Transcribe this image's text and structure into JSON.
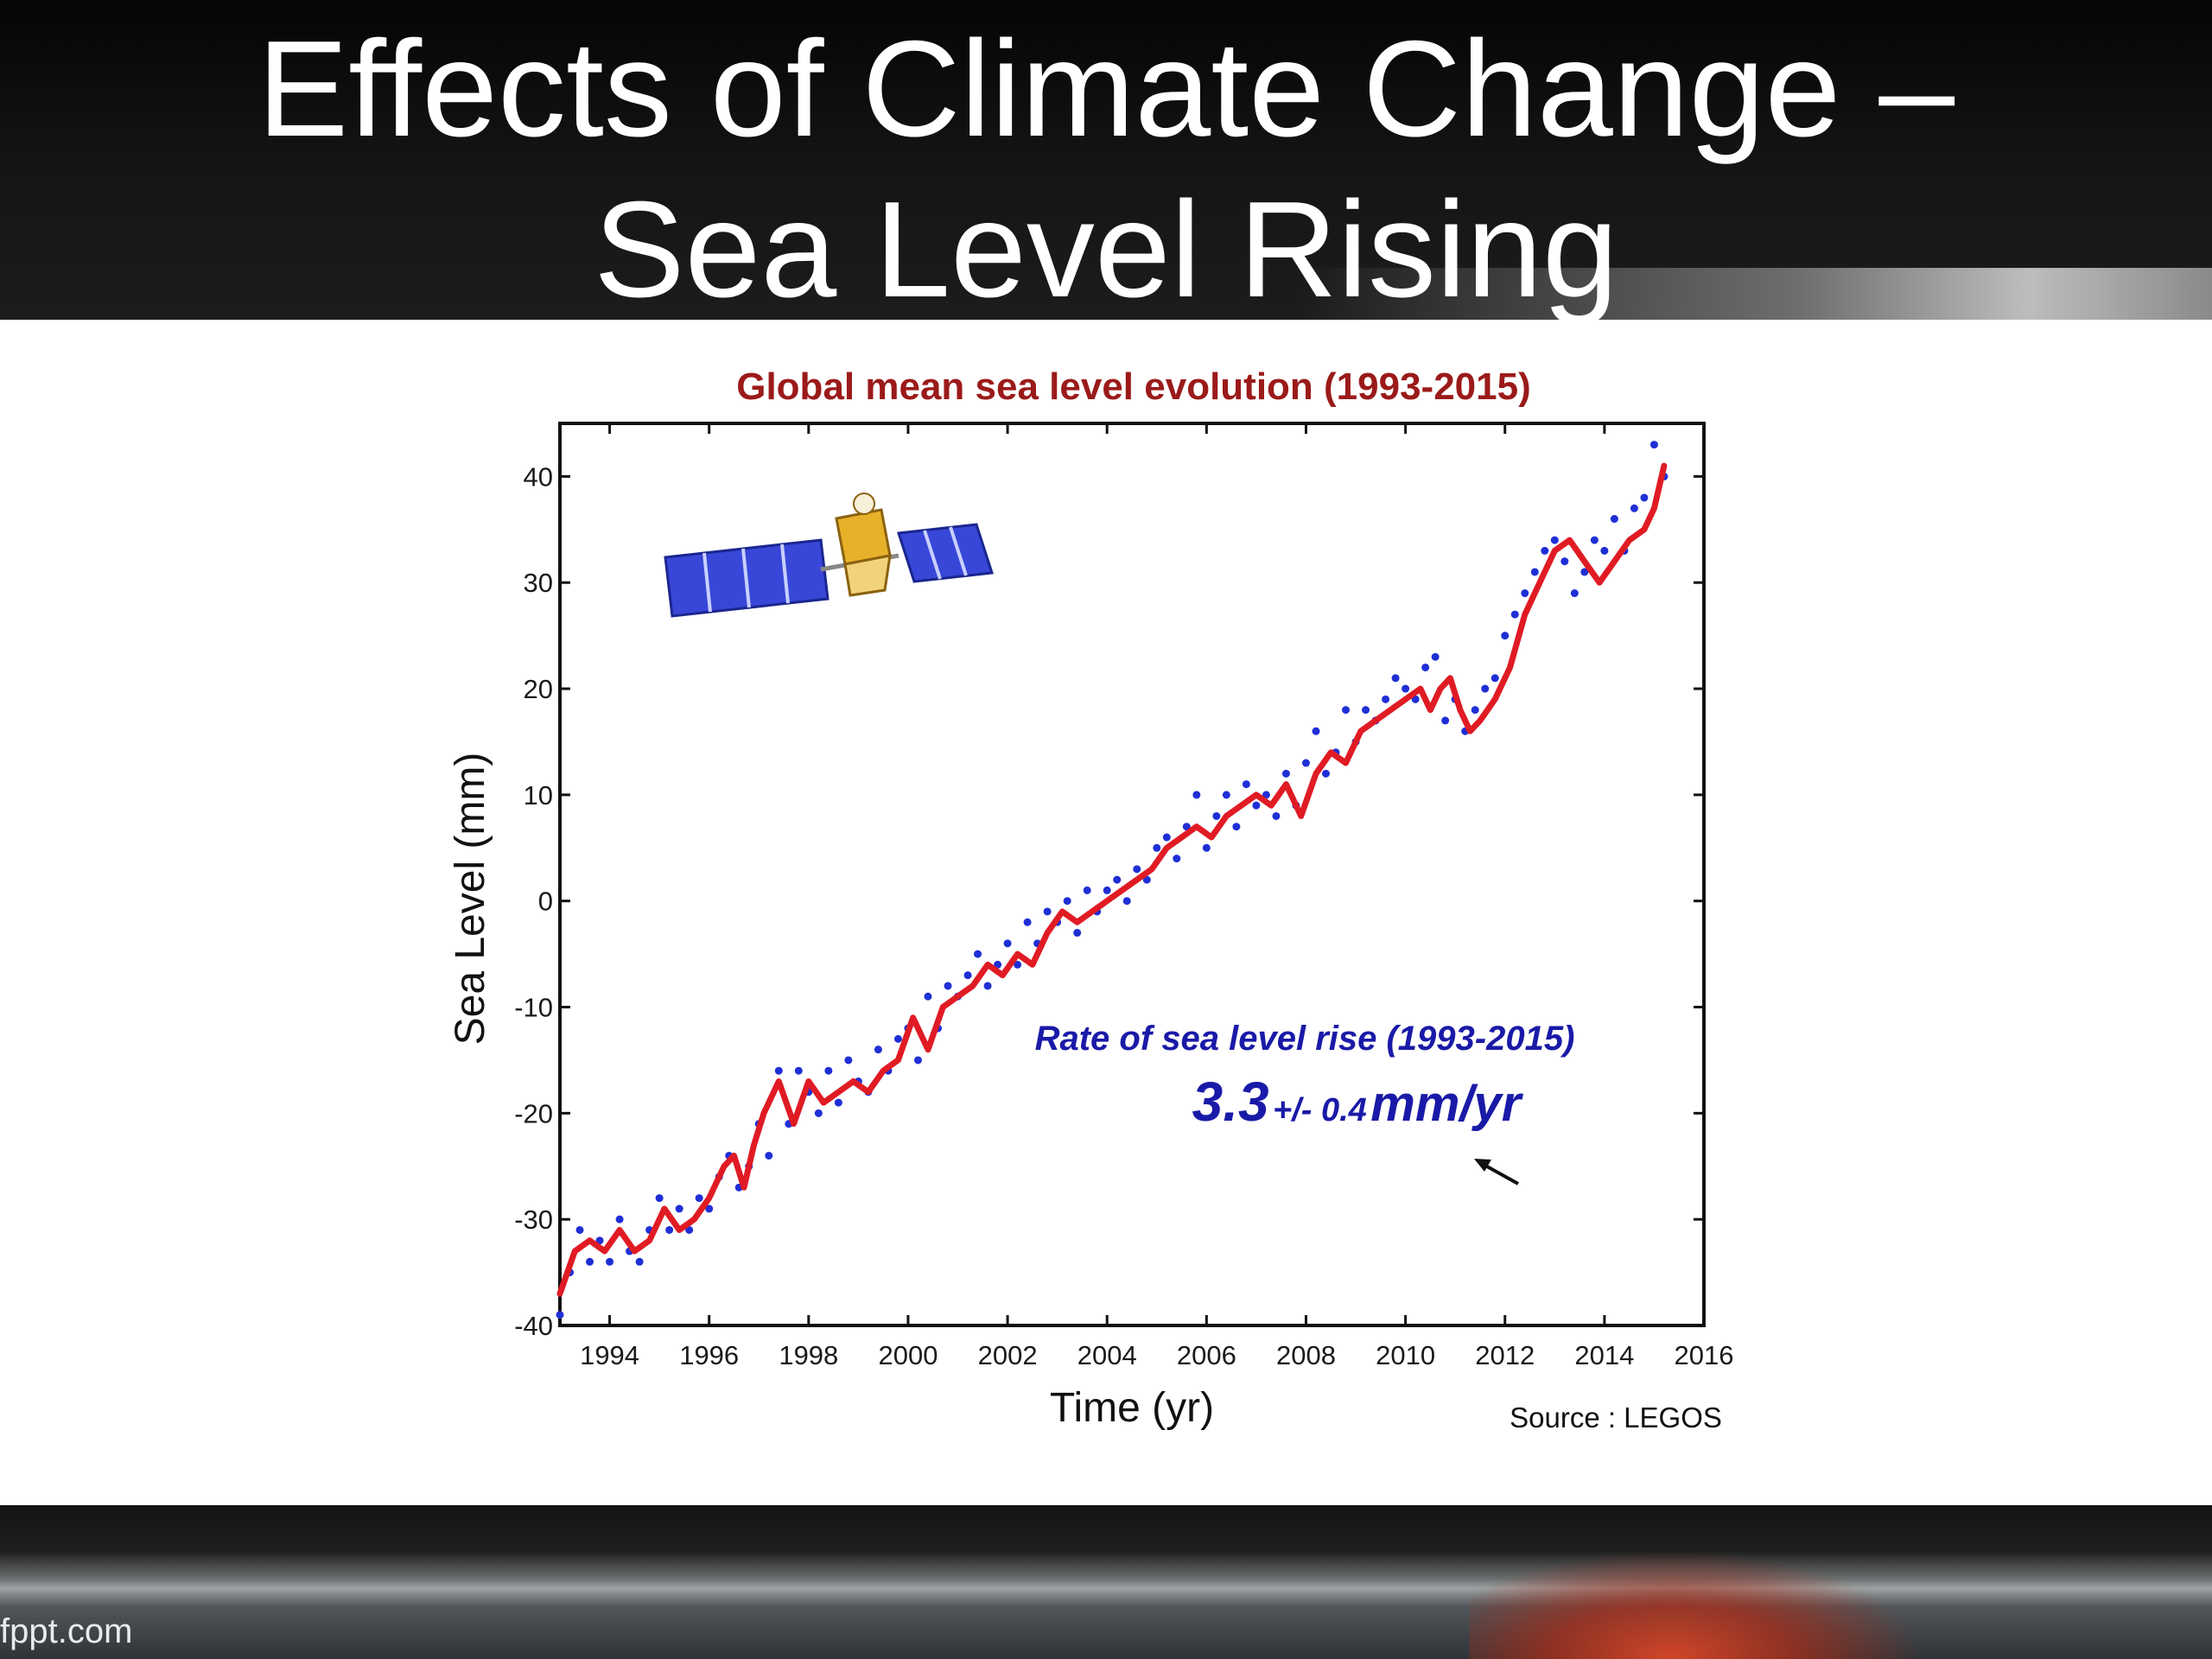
{
  "slide": {
    "title": "Effects of Climate Change –\nSea Level Rising",
    "footer_brand": "fppt.com"
  },
  "colors": {
    "header_bg": "#0a0a0a",
    "chart_title": "#9b1a1a",
    "curve": "#e01b24",
    "points": "#1f2fd6",
    "annotation": "#1a1aa8"
  },
  "icons": {
    "satellite": "satellite-icon",
    "arrow": "arrow-icon"
  },
  "chart_data": {
    "type": "line",
    "title": "Global mean sea level evolution  (1993-2015)",
    "xlabel": "Time (yr)",
    "ylabel": "Sea Level (mm)",
    "xlim": [
      1993,
      2016
    ],
    "ylim": [
      -40,
      45
    ],
    "x_ticks": [
      1994,
      1996,
      1998,
      2000,
      2002,
      2004,
      2006,
      2008,
      2010,
      2012,
      2014,
      2016
    ],
    "y_ticks": [
      40,
      30,
      20,
      10,
      0,
      -10,
      -20,
      -30,
      -40
    ],
    "grid": false,
    "series": [
      {
        "kind": "smoothed-line",
        "x": [
          1993.0,
          1993.3,
          1993.6,
          1993.9,
          1994.2,
          1994.5,
          1994.8,
          1995.1,
          1995.4,
          1995.7,
          1996.0,
          1996.3,
          1996.5,
          1996.7,
          1996.9,
          1997.1,
          1997.4,
          1997.7,
          1998.0,
          1998.3,
          1998.6,
          1998.9,
          1999.2,
          1999.5,
          1999.8,
          2000.1,
          2000.4,
          2000.7,
          2001.0,
          2001.3,
          2001.6,
          2001.9,
          2002.2,
          2002.5,
          2002.8,
          2003.1,
          2003.4,
          2003.7,
          2004.0,
          2004.3,
          2004.6,
          2004.9,
          2005.2,
          2005.5,
          2005.8,
          2006.1,
          2006.4,
          2006.7,
          2007.0,
          2007.3,
          2007.6,
          2007.9,
          2008.2,
          2008.5,
          2008.8,
          2009.1,
          2009.4,
          2009.7,
          2010.0,
          2010.3,
          2010.5,
          2010.7,
          2010.9,
          2011.1,
          2011.3,
          2011.5,
          2011.8,
          2012.1,
          2012.4,
          2012.7,
          2013.0,
          2013.3,
          2013.6,
          2013.9,
          2014.2,
          2014.5,
          2014.8,
          2015.0,
          2015.2
        ],
        "y": [
          -37,
          -33,
          -32,
          -33,
          -31,
          -33,
          -32,
          -29,
          -31,
          -30,
          -28,
          -25,
          -24,
          -27,
          -23,
          -20,
          -17,
          -21,
          -17,
          -19,
          -18,
          -17,
          -18,
          -16,
          -15,
          -11,
          -14,
          -10,
          -9,
          -8,
          -6,
          -7,
          -5,
          -6,
          -3,
          -1,
          -2,
          -1,
          0,
          1,
          2,
          3,
          5,
          6,
          7,
          6,
          8,
          9,
          10,
          9,
          11,
          8,
          12,
          14,
          13,
          16,
          17,
          18,
          19,
          20,
          18,
          20,
          21,
          18,
          16,
          17,
          19,
          22,
          27,
          30,
          33,
          34,
          32,
          30,
          32,
          34,
          35,
          37,
          41
        ]
      },
      {
        "kind": "scatter-points",
        "x": [
          1993.0,
          1993.2,
          1993.4,
          1993.6,
          1993.8,
          1994.0,
          1994.2,
          1994.4,
          1994.6,
          1994.8,
          1995.0,
          1995.2,
          1995.4,
          1995.6,
          1995.8,
          1996.0,
          1996.2,
          1996.4,
          1996.6,
          1996.8,
          1997.0,
          1997.2,
          1997.4,
          1997.6,
          1997.8,
          1998.0,
          1998.2,
          1998.4,
          1998.6,
          1998.8,
          1999.0,
          1999.2,
          1999.4,
          1999.6,
          1999.8,
          2000.0,
          2000.2,
          2000.4,
          2000.6,
          2000.8,
          2001.0,
          2001.2,
          2001.4,
          2001.6,
          2001.8,
          2002.0,
          2002.2,
          2002.4,
          2002.6,
          2002.8,
          2003.0,
          2003.2,
          2003.4,
          2003.6,
          2003.8,
          2004.0,
          2004.2,
          2004.4,
          2004.6,
          2004.8,
          2005.0,
          2005.2,
          2005.4,
          2005.6,
          2005.8,
          2006.0,
          2006.2,
          2006.4,
          2006.6,
          2006.8,
          2007.0,
          2007.2,
          2007.4,
          2007.6,
          2007.8,
          2008.0,
          2008.2,
          2008.4,
          2008.6,
          2008.8,
          2009.0,
          2009.2,
          2009.4,
          2009.6,
          2009.8,
          2010.0,
          2010.2,
          2010.4,
          2010.6,
          2010.8,
          2011.0,
          2011.2,
          2011.4,
          2011.6,
          2011.8,
          2012.0,
          2012.2,
          2012.4,
          2012.6,
          2012.8,
          2013.0,
          2013.2,
          2013.4,
          2013.6,
          2013.8,
          2014.0,
          2014.2,
          2014.4,
          2014.6,
          2014.8,
          2015.0,
          2015.2
        ],
        "y": [
          -39,
          -35,
          -31,
          -34,
          -32,
          -34,
          -30,
          -33,
          -34,
          -31,
          -28,
          -31,
          -29,
          -31,
          -28,
          -29,
          -26,
          -24,
          -27,
          -25,
          -21,
          -24,
          -16,
          -21,
          -16,
          -18,
          -20,
          -16,
          -19,
          -15,
          -17,
          -18,
          -14,
          -16,
          -13,
          -12,
          -15,
          -9,
          -12,
          -8,
          -9,
          -7,
          -5,
          -8,
          -6,
          -4,
          -6,
          -2,
          -4,
          -1,
          -2,
          0,
          -3,
          1,
          -1,
          1,
          2,
          0,
          3,
          2,
          5,
          6,
          4,
          7,
          10,
          5,
          8,
          10,
          7,
          11,
          9,
          10,
          8,
          12,
          9,
          13,
          16,
          12,
          14,
          18,
          15,
          18,
          17,
          19,
          21,
          20,
          19,
          22,
          23,
          17,
          19,
          16,
          18,
          20,
          21,
          25,
          27,
          29,
          31,
          33,
          34,
          32,
          29,
          31,
          34,
          33,
          36,
          33,
          37,
          38,
          43,
          40
        ]
      }
    ],
    "annotations": [
      "Rate of sea level rise (1993-2015)",
      "3.3",
      "+/- 0.4",
      "mm/yr",
      "Source : LEGOS"
    ]
  }
}
